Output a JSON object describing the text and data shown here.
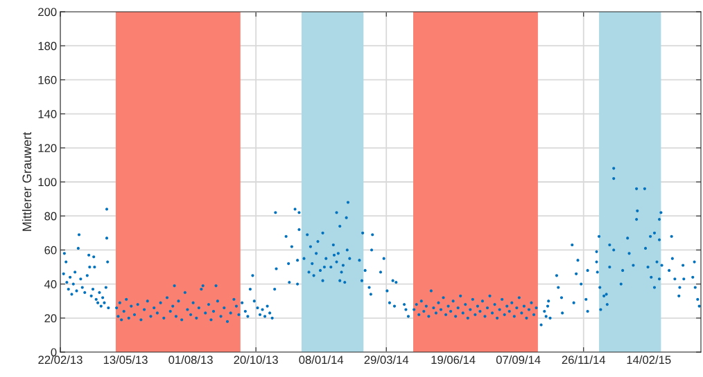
{
  "chart_data": {
    "type": "scatter",
    "ylabel": "Mittlerer Grauwert",
    "xlim": [
      "2013-02-22",
      "2015-04-19"
    ],
    "xticks": [
      {
        "value": "2013-02-22",
        "label": "22/02/13"
      },
      {
        "value": "2013-05-13",
        "label": "13/05/13"
      },
      {
        "value": "2013-08-01",
        "label": "01/08/13"
      },
      {
        "value": "2013-10-20",
        "label": "20/10/13"
      },
      {
        "value": "2014-01-08",
        "label": "08/01/14"
      },
      {
        "value": "2014-03-29",
        "label": "29/03/14"
      },
      {
        "value": "2014-06-19",
        "label": "19/06/14"
      },
      {
        "value": "2014-09-07",
        "label": "07/09/14"
      },
      {
        "value": "2014-11-26",
        "label": "26/11/14"
      },
      {
        "value": "2015-02-14",
        "label": "14/02/15"
      }
    ],
    "ylim": [
      0,
      200
    ],
    "yticks": [
      0,
      20,
      40,
      60,
      80,
      100,
      120,
      140,
      160,
      180,
      200
    ],
    "grid": true,
    "marker": "circle",
    "bands": [
      {
        "axis": "x",
        "from": "2013-05-01",
        "to": "2013-10-01",
        "color": "#fa8072"
      },
      {
        "axis": "x",
        "from": "2013-12-15",
        "to": "2014-03-01",
        "color": "#add8e6"
      },
      {
        "axis": "x",
        "from": "2014-05-01",
        "to": "2014-10-01",
        "color": "#fa8072"
      },
      {
        "axis": "x",
        "from": "2014-12-15",
        "to": "2015-03-01",
        "color": "#add8e6"
      }
    ],
    "series": [
      {
        "color": "#0072bd",
        "x": [
          "2013-02-26",
          "2013-02-27",
          "2013-03-01",
          "2013-03-02",
          "2013-03-04",
          "2013-03-06",
          "2013-03-08",
          "2013-03-10",
          "2013-03-12",
          "2013-03-14",
          "2013-03-16",
          "2013-03-17",
          "2013-03-19",
          "2013-03-21",
          "2013-03-24",
          "2013-03-27",
          "2013-03-29",
          "2013-03-30",
          "2013-04-01",
          "2013-04-03",
          "2013-04-04",
          "2013-04-05",
          "2013-04-07",
          "2013-04-09",
          "2013-04-11",
          "2013-04-13",
          "2013-04-15",
          "2013-04-17",
          "2013-04-19",
          "2013-04-20",
          "2013-04-20",
          "2013-04-21",
          "2013-04-22",
          "2013-05-02",
          "2013-05-04",
          "2013-05-06",
          "2013-05-08",
          "2013-05-11",
          "2013-05-14",
          "2013-05-17",
          "2013-05-20",
          "2013-05-24",
          "2013-05-28",
          "2013-06-01",
          "2013-06-05",
          "2013-06-09",
          "2013-06-13",
          "2013-06-17",
          "2013-06-21",
          "2013-06-25",
          "2013-06-29",
          "2013-07-03",
          "2013-07-07",
          "2013-07-10",
          "2013-07-12",
          "2013-07-14",
          "2013-07-17",
          "2013-07-21",
          "2013-07-25",
          "2013-07-28",
          "2013-08-01",
          "2013-08-04",
          "2013-08-08",
          "2013-08-11",
          "2013-08-14",
          "2013-08-16",
          "2013-08-19",
          "2013-08-23",
          "2013-08-26",
          "2013-08-29",
          "2013-09-01",
          "2013-09-03",
          "2013-09-07",
          "2013-09-11",
          "2013-09-15",
          "2013-09-19",
          "2013-09-23",
          "2013-09-26",
          "2013-09-29",
          "2013-10-03",
          "2013-10-07",
          "2013-10-10",
          "2013-10-13",
          "2013-10-16",
          "2013-10-18",
          "2013-10-22",
          "2013-10-25",
          "2013-10-28",
          "2013-10-31",
          "2013-11-03",
          "2013-11-06",
          "2013-11-09",
          "2013-11-12",
          "2013-11-13",
          "2013-11-14",
          "2013-11-26",
          "2013-11-29",
          "2013-11-30",
          "2013-12-03",
          "2013-12-07",
          "2013-12-10",
          "2013-12-10",
          "2013-12-12",
          "2013-12-12",
          "2013-12-18",
          "2013-12-22",
          "2013-12-24",
          "2013-12-26",
          "2013-12-28",
          "2013-12-30",
          "2014-01-02",
          "2014-01-04",
          "2014-01-07",
          "2014-01-10",
          "2014-01-10",
          "2014-01-12",
          "2014-01-14",
          "2014-01-20",
          "2014-01-23",
          "2014-01-24",
          "2014-01-27",
          "2014-01-27",
          "2014-01-29",
          "2014-01-31",
          "2014-01-31",
          "2014-02-02",
          "2014-02-04",
          "2014-02-06",
          "2014-02-08",
          "2014-02-09",
          "2014-02-10",
          "2014-02-12",
          "2014-02-24",
          "2014-02-27",
          "2014-02-28",
          "2014-03-03",
          "2014-03-08",
          "2014-03-10",
          "2014-03-11",
          "2014-03-12",
          "2014-03-22",
          "2014-03-26",
          "2014-03-30",
          "2014-04-02",
          "2014-04-06",
          "2014-04-08",
          "2014-04-10",
          "2014-04-20",
          "2014-04-22",
          "2014-04-25",
          "2014-05-02",
          "2014-05-05",
          "2014-05-08",
          "2014-05-11",
          "2014-05-14",
          "2014-05-17",
          "2014-05-20",
          "2014-05-23",
          "2014-05-26",
          "2014-05-29",
          "2014-06-01",
          "2014-06-04",
          "2014-06-07",
          "2014-06-10",
          "2014-06-13",
          "2014-06-16",
          "2014-06-19",
          "2014-06-22",
          "2014-06-25",
          "2014-06-28",
          "2014-07-01",
          "2014-07-04",
          "2014-07-07",
          "2014-07-10",
          "2014-07-13",
          "2014-07-16",
          "2014-07-19",
          "2014-07-22",
          "2014-07-25",
          "2014-07-28",
          "2014-07-31",
          "2014-08-03",
          "2014-08-06",
          "2014-08-09",
          "2014-08-12",
          "2014-08-15",
          "2014-08-18",
          "2014-08-21",
          "2014-08-24",
          "2014-08-27",
          "2014-08-30",
          "2014-09-02",
          "2014-09-05",
          "2014-09-08",
          "2014-09-11",
          "2014-09-14",
          "2014-09-17",
          "2014-09-20",
          "2014-09-23",
          "2014-09-26",
          "2014-09-29",
          "2014-10-05",
          "2014-10-09",
          "2014-10-11",
          "2014-10-13",
          "2014-10-14",
          "2014-10-16",
          "2014-10-24",
          "2014-10-26",
          "2014-10-30",
          "2014-10-31",
          "2014-11-12",
          "2014-11-14",
          "2014-11-17",
          "2014-11-19",
          "2014-11-23",
          "2014-11-29",
          "2014-12-01",
          "2014-12-01",
          "2014-12-12",
          "2014-12-12",
          "2014-12-13",
          "2014-12-15",
          "2014-12-16",
          "2014-12-17",
          "2014-12-21",
          "2014-12-24",
          "2014-12-25",
          "2014-12-28",
          "2014-12-28",
          "2015-01-02",
          "2015-01-02",
          "2015-01-02",
          "2015-01-11",
          "2015-01-13",
          "2015-01-19",
          "2015-01-21",
          "2015-01-26",
          "2015-01-30",
          "2015-01-30",
          "2015-01-31",
          "2015-02-09",
          "2015-02-10",
          "2015-02-13",
          "2015-02-16",
          "2015-02-17",
          "2015-02-21",
          "2015-02-21",
          "2015-02-24",
          "2015-02-27",
          "2015-02-27",
          "2015-02-27",
          "2015-03-01",
          "2015-03-02",
          "2015-03-11",
          "2015-03-14",
          "2015-03-15",
          "2015-03-18",
          "2015-03-23",
          "2015-03-24",
          "2015-03-28",
          "2015-03-29",
          "2015-04-09",
          "2015-04-11",
          "2015-04-12",
          "2015-04-15",
          "2015-04-17"
        ],
        "values": [
          46,
          58,
          53,
          41,
          37,
          44,
          34,
          40,
          47,
          36,
          61,
          69,
          43,
          38,
          35,
          45,
          57,
          50,
          33,
          37,
          56,
          50,
          31,
          29,
          35,
          27,
          32,
          29,
          38,
          84,
          67,
          53,
          26,
          26,
          21,
          29,
          19,
          24,
          31,
          20,
          27,
          22,
          28,
          19,
          25,
          30,
          21,
          26,
          23,
          29,
          20,
          32,
          24,
          27,
          39,
          21,
          30,
          19,
          35,
          25,
          22,
          29,
          20,
          26,
          37,
          39,
          23,
          28,
          19,
          24,
          39,
          30,
          21,
          26,
          18,
          23,
          31,
          27,
          22,
          29,
          24,
          21,
          37,
          45,
          30,
          26,
          22,
          25,
          21,
          27,
          23,
          20,
          37,
          82,
          49,
          68,
          52,
          41,
          62,
          84,
          54,
          40,
          82,
          72,
          55,
          69,
          47,
          62,
          52,
          45,
          58,
          65,
          48,
          70,
          42,
          50,
          55,
          50,
          63,
          57,
          53,
          82,
          58,
          74,
          42,
          47,
          51,
          41,
          79,
          60,
          88,
          55,
          54,
          42,
          70,
          48,
          38,
          34,
          60,
          69,
          47,
          55,
          36,
          29,
          42,
          27,
          41,
          28,
          25,
          21,
          25,
          28,
          22,
          30,
          24,
          27,
          21,
          36,
          26,
          23,
          29,
          25,
          32,
          22,
          27,
          24,
          30,
          21,
          26,
          33,
          23,
          28,
          20,
          25,
          31,
          22,
          27,
          24,
          30,
          21,
          26,
          33,
          23,
          28,
          20,
          25,
          31,
          22,
          27,
          24,
          29,
          21,
          26,
          32,
          23,
          27,
          20,
          25,
          29,
          22,
          26,
          16,
          24,
          21,
          27,
          30,
          20,
          45,
          38,
          32,
          23,
          63,
          29,
          46,
          54,
          40,
          31,
          24,
          48,
          59,
          53,
          47,
          68,
          38,
          25,
          33,
          34,
          28,
          63,
          50,
          108,
          102,
          60,
          40,
          48,
          67,
          58,
          51,
          96,
          78,
          83,
          96,
          61,
          50,
          68,
          44,
          70,
          38,
          53,
          66,
          78,
          43,
          82,
          51,
          48,
          68,
          55,
          43,
          33,
          38,
          51,
          43,
          44,
          53,
          38,
          31,
          27
        ]
      }
    ]
  }
}
